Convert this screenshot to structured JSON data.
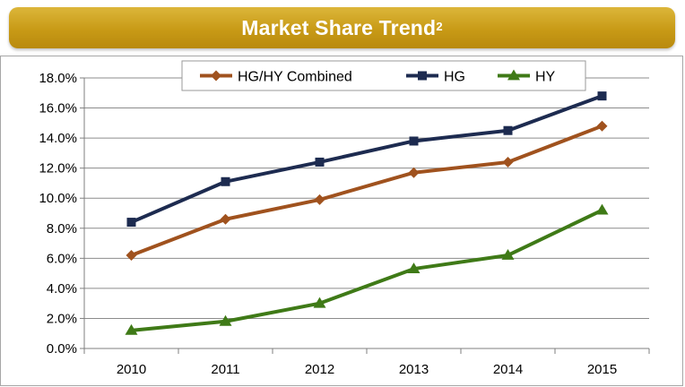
{
  "header": {
    "title": "Market Share Trend",
    "superscript": "2"
  },
  "colors": {
    "HG/HY Combined": "#a0521e",
    "HG": "#1d2b50",
    "HY": "#3f7a17",
    "title_bar": "#c89a16"
  },
  "chart_data": {
    "type": "line",
    "title": "Market Share Trend",
    "categories": [
      "2010",
      "2011",
      "2012",
      "2013",
      "2014",
      "2015"
    ],
    "y_tick_labels": [
      "0.0%",
      "2.0%",
      "4.0%",
      "6.0%",
      "8.0%",
      "10.0%",
      "12.0%",
      "14.0%",
      "16.0%",
      "18.0%"
    ],
    "ylim": [
      0,
      18
    ],
    "y_unit": "%",
    "grid": true,
    "legend_position": "top",
    "series": [
      {
        "name": "HG/HY Combined",
        "marker": "diamond",
        "values": [
          6.2,
          8.6,
          9.9,
          11.7,
          12.4,
          14.8
        ]
      },
      {
        "name": "HG",
        "marker": "square",
        "values": [
          8.4,
          11.1,
          12.4,
          13.8,
          14.5,
          16.8
        ]
      },
      {
        "name": "HY",
        "marker": "triangle",
        "values": [
          1.2,
          1.8,
          3.0,
          5.3,
          6.2,
          9.2
        ]
      }
    ]
  }
}
